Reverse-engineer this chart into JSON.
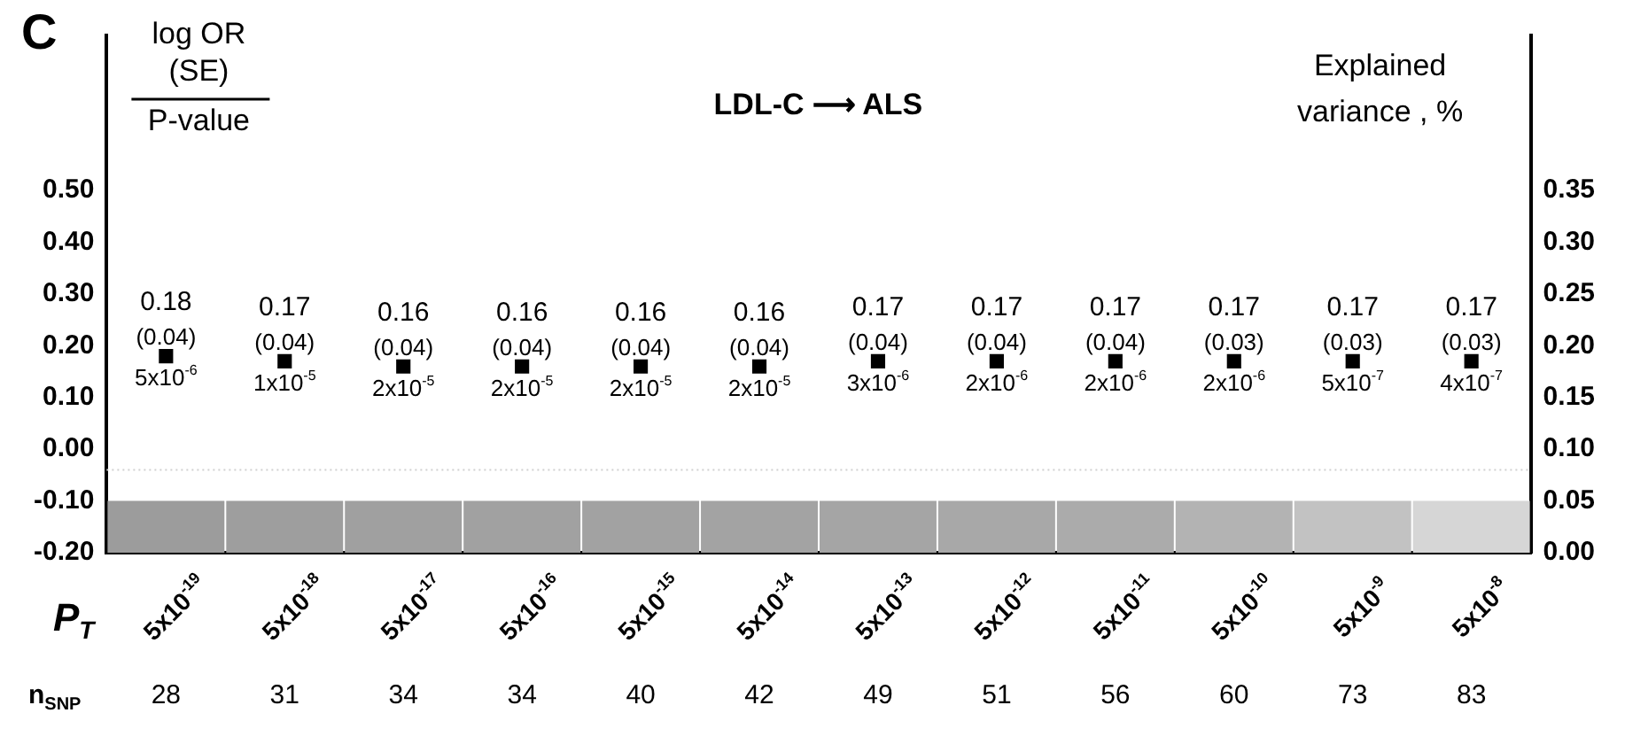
{
  "chart_data": {
    "type": "bar",
    "title": "LDL-C ⟶ ALS",
    "xlabel": "P$_{T}$",
    "y2label": "Explained\nvariance , %",
    "categories": [
      "5x10$^{-19}$",
      "5x10$^{-18}$",
      "5x10$^{-17}$",
      "5x10$^{-16}$",
      "5x10$^{-15}$",
      "5x10$^{-14}$",
      "5x10$^{-13}$",
      "5x10$^{-12}$",
      "5x10$^{-11}$",
      "5x10$^{-10}$",
      "5x10$^{-9}$",
      "5x10$^{-8}$"
    ],
    "series": [
      {
        "axis": "y2",
        "values": [
          0.05,
          0.05,
          0.05,
          0.05,
          0.05,
          0.05,
          0.05,
          0.05,
          0.05,
          0.05,
          0.05,
          0.05
        ],
        "colors": [
          "#9c9c9c",
          "#9e9e9e",
          "#a0a0a0",
          "#a1a1a1",
          "#a2a2a2",
          "#a3a3a3",
          "#a5a5a5",
          "#a8a8a8",
          "#ababab",
          "#b3b3b3",
          "#c2c2c2",
          "#d6d6d6"
        ]
      },
      {
        "type": "scatter",
        "color": "#000000",
        "marker": "square",
        "values": [
          0.18,
          0.17,
          0.16,
          0.16,
          0.16,
          0.16,
          0.17,
          0.17,
          0.17,
          0.17,
          0.17,
          0.17
        ],
        "value_labels": [
          "0.18\n(0.04)\n5x10$^{-6}$",
          "0.17\n(0.04)\n1x10$^{-5}$",
          "0.16\n(0.04)\n2x10$^{-5}$",
          "0.16\n(0.04)\n2x10$^{-5}$",
          "0.16\n(0.04)\n2x10$^{-5}$",
          "0.16\n(0.04)\n2x10$^{-5}$",
          "0.17\n(0.04)\n3x10$^{-6}$",
          "0.17\n(0.04)\n2x10$^{-6}$",
          "0.17\n(0.04)\n2x10$^{-6}$",
          "0.17\n(0.03)\n2x10$^{-6}$",
          "0.17\n(0.03)\n5x10$^{-7}$",
          "0.17\n(0.03)\n4x10$^{-7}$"
        ]
      }
    ],
    "ylim": [
      -0.2,
      0.8
    ],
    "yticks": [
      {
        "value": -0.2,
        "label": "-0.20"
      },
      {
        "value": -0.1,
        "label": "-0.10"
      },
      {
        "value": 0,
        "label": "0.00"
      },
      {
        "value": 0.1,
        "label": "0.10"
      },
      {
        "value": 0.2,
        "label": "0.20"
      },
      {
        "value": 0.3,
        "label": "0.30"
      },
      {
        "value": 0.4,
        "label": "0.40"
      },
      {
        "value": 0.5,
        "label": "0.50"
      }
    ],
    "y2lim": [
      0,
      0.5
    ],
    "y2ticks": [
      {
        "value": 0,
        "label": "0.00"
      },
      {
        "value": 0.05,
        "label": "0.05"
      },
      {
        "value": 0.1,
        "label": "0.10"
      },
      {
        "value": 0.15,
        "label": "0.15"
      },
      {
        "value": 0.2,
        "label": "0.20"
      },
      {
        "value": 0.25,
        "label": "0.25"
      },
      {
        "value": 0.3,
        "label": "0.30"
      },
      {
        "value": 0.35,
        "label": "0.35"
      }
    ],
    "ref_lines": [
      {
        "axis": "y",
        "value": -0.04,
        "color": "#d0d0d0",
        "line_style": "dotted"
      }
    ],
    "annotations": [
      "C",
      "log OR\n(SE)\nP-value",
      "n$_{SNP}$",
      "28",
      "31",
      "34",
      "34",
      "40",
      "42",
      "49",
      "51",
      "56",
      "60",
      "73",
      "83"
    ]
  }
}
